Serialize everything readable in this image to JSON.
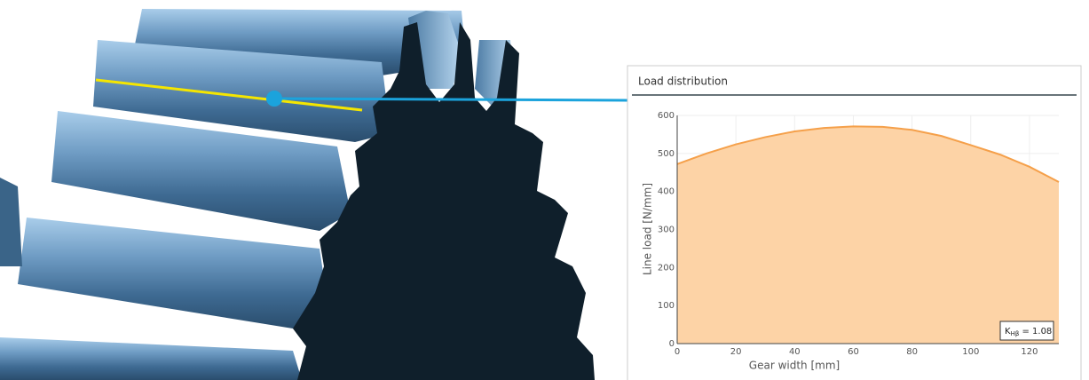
{
  "chart_data": {
    "type": "area",
    "title": "Load distribution",
    "x_label": "Gear width [mm]",
    "y_label": "Line load [N/mm]",
    "x": [
      0,
      10,
      20,
      30,
      40,
      50,
      60,
      70,
      80,
      90,
      100,
      110,
      120,
      130
    ],
    "series": [
      {
        "name": "Line load",
        "color": "#f5a04a",
        "fill": "#fdd3a6",
        "values": [
          472,
          500,
          524,
          543,
          558,
          567,
          571,
          570,
          562,
          546,
          522,
          497,
          465,
          425
        ]
      }
    ],
    "xlim": [
      0,
      130
    ],
    "ylim": [
      0,
      600
    ],
    "xticks": [
      0,
      20,
      40,
      60,
      80,
      100,
      120
    ],
    "yticks": [
      0,
      100,
      200,
      300,
      400,
      500,
      600
    ],
    "grid": true,
    "annotation": {
      "symbol": "K",
      "subscript": "Hβ",
      "text": " = 1.08"
    }
  }
}
